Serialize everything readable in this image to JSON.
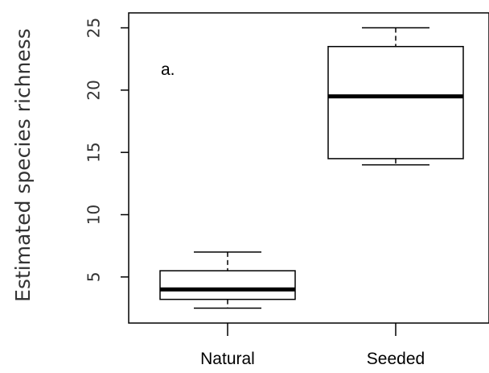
{
  "chart_data": {
    "type": "box",
    "panel_label": "a.",
    "ylabel": "Estimated species richness",
    "categories": [
      "Natural",
      "Seeded"
    ],
    "yticks": [
      5,
      10,
      15,
      20,
      25
    ],
    "ylim": [
      1.3,
      26.2
    ],
    "boxes": [
      {
        "category": "Natural",
        "min": 2.5,
        "q1": 3.2,
        "median": 4.0,
        "q3": 5.5,
        "max": 7.0
      },
      {
        "category": "Seeded",
        "min": 14.0,
        "q1": 14.5,
        "median": 19.5,
        "q3": 23.5,
        "max": 25.0
      }
    ]
  }
}
